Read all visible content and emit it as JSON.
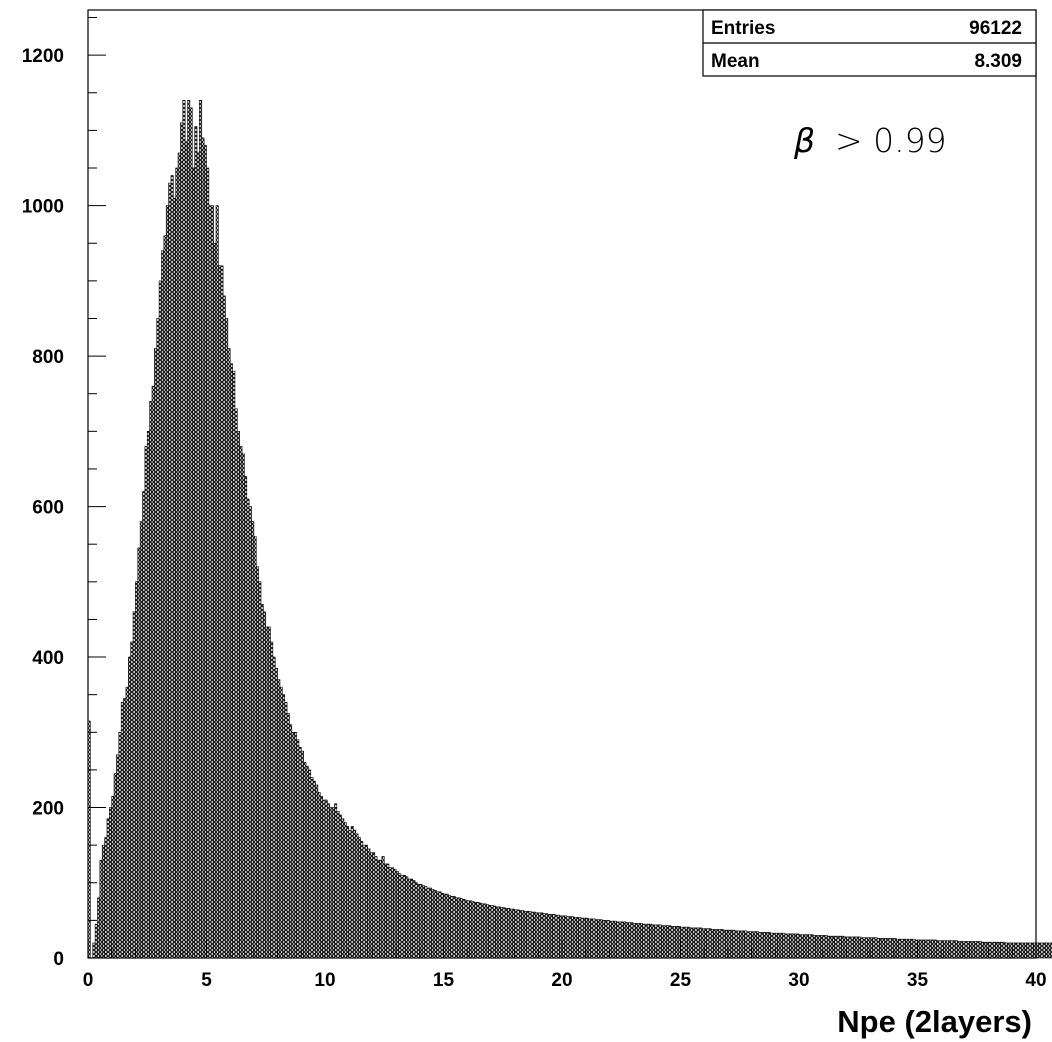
{
  "chart_data": {
    "type": "bar",
    "xlabel": "Npe (2layers)",
    "ylabel": "",
    "xlim": [
      0,
      40
    ],
    "ylim": [
      0,
      1260
    ],
    "x_ticks": [
      "0",
      "5",
      "10",
      "15",
      "20",
      "25",
      "30",
      "35",
      "40"
    ],
    "y_ticks": [
      "0",
      "200",
      "400",
      "600",
      "800",
      "1000",
      "1200"
    ],
    "bin_width": 0.1,
    "grid": false,
    "fill": "crosshatch",
    "stats": {
      "entries_label": "Entries",
      "entries_value": "96122",
      "mean_label": "Mean",
      "mean_value": "8.309"
    },
    "annotation": {
      "symbol": "β",
      "text": "> 0.99"
    },
    "values": [
      315,
      0,
      20,
      45,
      80,
      130,
      150,
      160,
      185,
      200,
      215,
      245,
      270,
      300,
      340,
      345,
      360,
      400,
      420,
      460,
      500,
      545,
      580,
      620,
      680,
      700,
      740,
      760,
      810,
      850,
      900,
      940,
      960,
      1000,
      1030,
      1040,
      1010,
      1050,
      1070,
      1110,
      1140,
      1085,
      1140,
      1130,
      1050,
      1105,
      1070,
      1140,
      1090,
      1080,
      1050,
      1000,
      1000,
      950,
      1000,
      920,
      920,
      880,
      850,
      810,
      790,
      780,
      730,
      700,
      680,
      670,
      640,
      610,
      600,
      580,
      560,
      520,
      500,
      470,
      460,
      440,
      440,
      420,
      400,
      385,
      370,
      360,
      350,
      340,
      325,
      310,
      300,
      300,
      290,
      280,
      275,
      260,
      255,
      250,
      240,
      235,
      230,
      220,
      215,
      210,
      210,
      205,
      200,
      200,
      205,
      195,
      190,
      185,
      180,
      175,
      170,
      175,
      170,
      165,
      160,
      155,
      150,
      150,
      145,
      140,
      140,
      135,
      130,
      130,
      135,
      125,
      125,
      120,
      120,
      118,
      115,
      112,
      110,
      110,
      108,
      105,
      105,
      103,
      100,
      98,
      98,
      96,
      95,
      93,
      93,
      91,
      90,
      88,
      88,
      86,
      85,
      85,
      83,
      82,
      82,
      80,
      80,
      79,
      78,
      77,
      76,
      76,
      75,
      74,
      74,
      73,
      72,
      72,
      71,
      70,
      70,
      69,
      68,
      68,
      67,
      67,
      66,
      66,
      65,
      65,
      64,
      64,
      63,
      63,
      62,
      62,
      62,
      61,
      61,
      60,
      60,
      60,
      59,
      59,
      58,
      58,
      58,
      57,
      57,
      56,
      56,
      56,
      55,
      55,
      55,
      54,
      54,
      54,
      53,
      53,
      53,
      52,
      52,
      52,
      51,
      51,
      51,
      50,
      50,
      50,
      49,
      49,
      49,
      48,
      48,
      48,
      48,
      47,
      47,
      47,
      46,
      46,
      46,
      46,
      45,
      45,
      45,
      45,
      44,
      44,
      44,
      44,
      43,
      43,
      43,
      43,
      42,
      42,
      42,
      42,
      41,
      41,
      41,
      41,
      40,
      40,
      40,
      40,
      40,
      39,
      39,
      39,
      39,
      38,
      38,
      38,
      38,
      38,
      37,
      37,
      37,
      37,
      37,
      36,
      36,
      36,
      36,
      36,
      35,
      35,
      35,
      35,
      35,
      34,
      34,
      34,
      34,
      34,
      33,
      33,
      33,
      33,
      33,
      33,
      32,
      32,
      32,
      32,
      32,
      32,
      31,
      31,
      31,
      31,
      31,
      31,
      30,
      30,
      30,
      30,
      30,
      30,
      29,
      29,
      29,
      29,
      29,
      29,
      29,
      28,
      28,
      28,
      28,
      28,
      28,
      28,
      27,
      27,
      27,
      27,
      27,
      27,
      27,
      26,
      26,
      26,
      26,
      26,
      26,
      26,
      26,
      25,
      25,
      25,
      25,
      25,
      25,
      25,
      25,
      24,
      24,
      24,
      24,
      24,
      24,
      24,
      24,
      24,
      23,
      23,
      23,
      23,
      23,
      23,
      23,
      23,
      23,
      22,
      22,
      22,
      22,
      22,
      22,
      22,
      22,
      22,
      22,
      21,
      21,
      21,
      21,
      21,
      21,
      21,
      21,
      21,
      21,
      20,
      20,
      20,
      20,
      20,
      20,
      20,
      20,
      20,
      20,
      20,
      20,
      20,
      20,
      20,
      20,
      20,
      20,
      20,
      20,
      20,
      20,
      20,
      20,
      20,
      20,
      20,
      20,
      20,
      20,
      20,
      20,
      20,
      20
    ]
  }
}
